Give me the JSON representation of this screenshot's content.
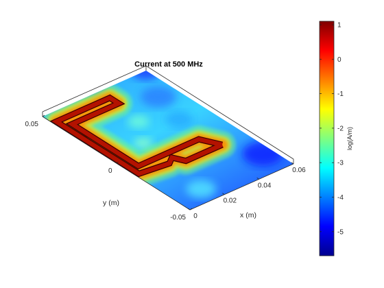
{
  "chart_data": {
    "type": "heatmap",
    "title": "Current at 500 MHz",
    "xlabel": "x (m)",
    "ylabel": "y (m)",
    "colorbar_label": "log(A/m)",
    "colormap": "jet",
    "view": "3d-surface",
    "x_ticks": [
      "0",
      "0.02",
      "0.04",
      "0.06"
    ],
    "y_ticks": [
      "-0.05",
      "0",
      "0.05"
    ],
    "xlim": [
      0,
      0.06
    ],
    "ylim": [
      -0.05,
      0.05
    ],
    "clim": [
      -5.7,
      1.1
    ],
    "colorbar_ticks": [
      {
        "value": 1,
        "label": "1"
      },
      {
        "value": 0,
        "label": "0"
      },
      {
        "value": -1,
        "label": "-1"
      },
      {
        "value": -2,
        "label": "-2"
      },
      {
        "value": -3,
        "label": "-3"
      },
      {
        "value": -4,
        "label": "-4"
      },
      {
        "value": -5,
        "label": "-5"
      }
    ],
    "trace_path_xy": [
      [
        0.046,
        -0.018
      ],
      [
        0.025,
        -0.018
      ],
      [
        0.022,
        -0.012
      ],
      [
        0.018,
        -0.015
      ],
      [
        0.002,
        -0.013
      ],
      [
        0.002,
        0.043
      ],
      [
        0.033,
        0.043
      ],
      [
        0.033,
        0.037
      ],
      [
        0.006,
        0.037
      ],
      [
        0.006,
        -0.008
      ],
      [
        0.041,
        -0.008
      ],
      [
        0.046,
        -0.018
      ]
    ],
    "trace_level": 1,
    "background_level": -3
  }
}
